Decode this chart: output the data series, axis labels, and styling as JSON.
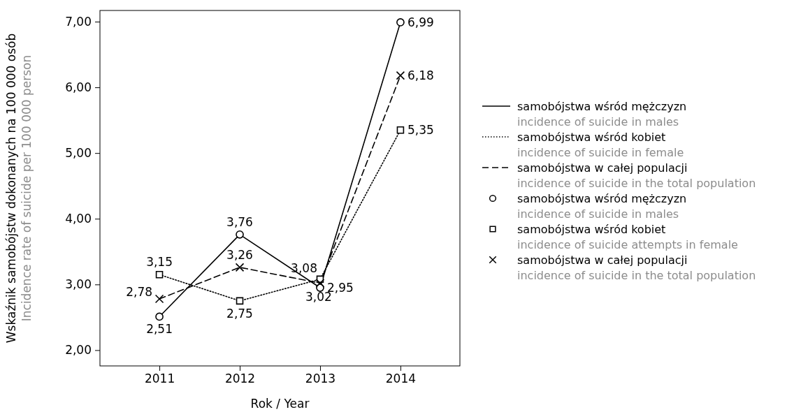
{
  "chart_data": {
    "type": "line",
    "xlabel": "Rok / Year",
    "ylabel": "Wskaźnik samobójstw dokonanych na 100 000 osób\nIncidence rate of suicide per 100 000 person",
    "categories": [
      "2011",
      "2012",
      "2013",
      "2014"
    ],
    "ylim": [
      1.76,
      7.17
    ],
    "yticks": [
      {
        "value": 2,
        "label": "2,00"
      },
      {
        "value": 3,
        "label": "3,00"
      },
      {
        "value": 4,
        "label": "4,00"
      },
      {
        "value": 5,
        "label": "5,00"
      },
      {
        "value": 6,
        "label": "6,00"
      },
      {
        "value": 7,
        "label": "7,00"
      }
    ],
    "grid": false,
    "legend": "right",
    "series": [
      {
        "name": "samobójstwa wśród mężczyzn\nincidence of suicide in males",
        "color": "#000000",
        "line_style": "solid",
        "marker": "none",
        "values": [
          2.51,
          3.76,
          2.95,
          6.99
        ]
      },
      {
        "name": "samobójstwa wśród kobiet\nincidence of suicide in female",
        "color": "#000000",
        "line_style": "dotted",
        "marker": "none",
        "values": [
          3.15,
          2.75,
          3.08,
          5.35
        ]
      },
      {
        "name": "samobójstwa w całej populacji\nincidence of suicide in the total population",
        "color": "#000000",
        "line_style": "dashed",
        "marker": "none",
        "values": [
          2.78,
          3.26,
          3.02,
          6.18
        ]
      },
      {
        "type": "scatter",
        "name": "samobójstwa wśród mężczyzn\nincidence of suicide in males",
        "color": "#000000",
        "marker": "circle",
        "values": [
          2.51,
          3.76,
          2.95,
          6.99
        ],
        "value_labels": [
          "2,51",
          "3,76",
          "2,95",
          "6,99"
        ]
      },
      {
        "type": "scatter",
        "name": "samobójstwa wśród kobiet\nincidence of suicide attempts in female",
        "color": "#000000",
        "marker": "square",
        "values": [
          3.15,
          2.75,
          3.08,
          5.35
        ],
        "value_labels": [
          "3,15",
          "2,75",
          "3,08",
          "5,35"
        ]
      },
      {
        "type": "scatter",
        "name": "samobójstwa w całej populacji\nincidence of suicide in the total population",
        "color": "#000000",
        "marker": "cross",
        "values": [
          2.78,
          3.26,
          3.02,
          6.18
        ],
        "value_labels": [
          "2,78",
          "3,26",
          "3,02",
          "6,18"
        ]
      }
    ]
  }
}
